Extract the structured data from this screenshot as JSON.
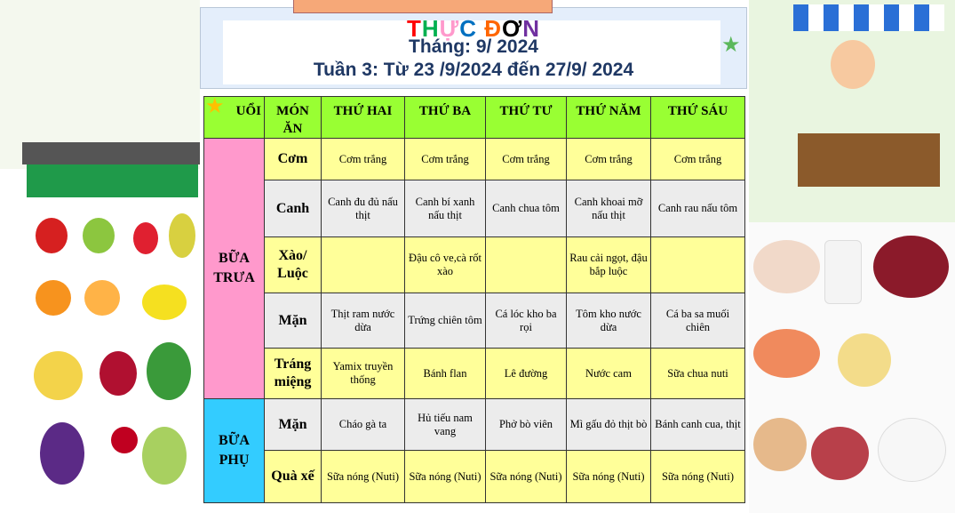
{
  "title": {
    "letters": [
      {
        "ch": "T",
        "color": "#ff0000"
      },
      {
        "ch": "H",
        "color": "#00b050"
      },
      {
        "ch": "Ự",
        "color": "#ff99cc"
      },
      {
        "ch": "C",
        "color": "#0070c0"
      },
      {
        "ch": " ",
        "color": "#000000"
      },
      {
        "ch": "Đ",
        "color": "#ff6600"
      },
      {
        "ch": "Ơ",
        "color": "#000000"
      },
      {
        "ch": "N",
        "color": "#7030a0"
      }
    ],
    "month": "Tháng: 9/ 2024",
    "week": "Tuần 3: Từ 23 /9/2024 đến 27/9/ 2024"
  },
  "table": {
    "headers": [
      "BUỔI",
      "MÓN ĂN",
      "THỨ HAI",
      "THỨ BA",
      "THỨ TƯ",
      "THỨ NĂM",
      "THỨ SÁU"
    ],
    "header_first_visible": "UỔI",
    "meals": [
      {
        "name": "BỮA TRƯA",
        "color": "#ff99cc",
        "rows": [
          {
            "dish": "Cơm",
            "items": [
              "Cơm trắng",
              "Cơm trắng",
              "Cơm trắng",
              "Cơm trắng",
              "Cơm trắng"
            ]
          },
          {
            "dish": "Canh",
            "items": [
              "Canh đu đủ nấu thịt",
              "Canh bí xanh nấu thịt",
              "Canh chua tôm",
              "Canh khoai mỡ nấu thịt",
              "Canh rau nấu tôm"
            ]
          },
          {
            "dish": "Xào/ Luộc",
            "items": [
              "",
              "Đậu cô ve,cà rốt xào",
              "",
              "Rau cải ngọt, đậu bắp luộc",
              ""
            ]
          },
          {
            "dish": "Mặn",
            "items": [
              "Thịt ram nước dừa",
              "Trứng chiên tôm",
              "Cá lóc kho ba rọi",
              "Tôm kho nước dừa",
              "Cá ba sa muối chiên"
            ]
          },
          {
            "dish": "Tráng miệng",
            "items": [
              "Yamix truyền thống",
              "Bánh flan",
              "Lê đường",
              "Nước cam",
              "Sữa chua nuti"
            ]
          }
        ]
      },
      {
        "name": "BỮA PHỤ",
        "color": "#33ccff",
        "rows": [
          {
            "dish": "Mặn",
            "items": [
              "Cháo gà ta",
              "Hủ tiếu nam vang",
              "Phở bò viên",
              "Mì gấu đỏ thịt bò",
              "Bánh canh cua, thịt"
            ]
          },
          {
            "dish": "Quà xế",
            "items": [
              "Sữa nóng (Nuti)",
              "Sữa nóng (Nuti)",
              "Sữa nóng (Nuti)",
              "Sữa nóng (Nuti)",
              "Sữa nóng (Nuti)"
            ]
          }
        ]
      }
    ]
  },
  "colors": {
    "header": "#99ff33",
    "row_yellow": "#ffff99",
    "row_gray": "#ececec",
    "subtitle": "#1f3864"
  }
}
